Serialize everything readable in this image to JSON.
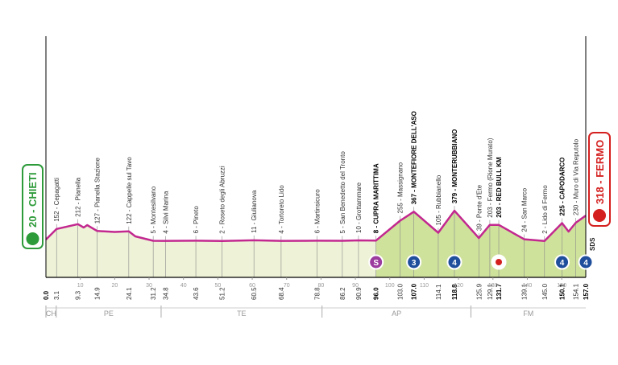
{
  "chart_data": {
    "type": "profile",
    "start": "20 - CHIETI",
    "finish": "318 - FERMO",
    "line_color": "#c2288f",
    "fill_color": "#eef3d7",
    "climb_fill_color": "#cfe29c",
    "climb_from": 96,
    "xlim": [
      0,
      157
    ],
    "ylim": [
      -450,
      1200
    ],
    "xticks": [
      10,
      20,
      30,
      40,
      50,
      60,
      70,
      80,
      90,
      100,
      110,
      120,
      130,
      140,
      150
    ],
    "profile": {
      "x": [
        0,
        3.1,
        9.3,
        11,
        12,
        14.9,
        20,
        24.1,
        26,
        31.2,
        34.8,
        43.6,
        51.2,
        60.5,
        68.4,
        78.8,
        86.2,
        90.9,
        96,
        103,
        107,
        114.1,
        118.8,
        125.9,
        129.1,
        131.7,
        139.1,
        145,
        150.1,
        152,
        154.1,
        157
      ],
      "y": [
        20,
        152,
        212,
        170,
        200,
        127,
        115,
        122,
        60,
        5,
        4,
        6,
        2,
        11,
        4,
        6,
        5,
        10,
        8,
        255,
        367,
        105,
        379,
        39,
        203,
        203,
        24,
        2,
        225,
        120,
        230,
        318
      ]
    },
    "waypoints": [
      {
        "km": {
          "value": 0,
          "label": "0.0"
        },
        "bold": true
      },
      {
        "km": 3.1,
        "name": "152 - Cepagatti"
      },
      {
        "km": 9.3,
        "name": "212 - Pianella"
      },
      {
        "km": 14.9,
        "name": "127 - Pianella Stazione"
      },
      {
        "km": 24.1,
        "name": "122 - Cappelle sul Tavo"
      },
      {
        "km": 31.2,
        "name": "5 - Montesilvano"
      },
      {
        "km": 34.8,
        "name": "4 - Silvi Marina"
      },
      {
        "km": 43.6,
        "name": "6 - Pineto"
      },
      {
        "km": 51.2,
        "name": "2 - Roseto degli Abruzzi"
      },
      {
        "km": 60.5,
        "name": "11 - Giulianova"
      },
      {
        "km": 68.4,
        "name": "4 - Tortoreto Lido"
      },
      {
        "km": 78.8,
        "name": "6 - Martinsicuro"
      },
      {
        "km": 86.2,
        "name": "5 - San Benedetto del Tronto"
      },
      {
        "km": 90.9,
        "name": "10 - Grottammare"
      },
      {
        "km": {
          "value": 96,
          "label": "96.0"
        },
        "name": "8 - CUPRA MARITTIMA",
        "bold": true
      },
      {
        "km": {
          "value": 103,
          "label": "103.0"
        },
        "name": "255 - Massignano"
      },
      {
        "km": {
          "value": 107,
          "label": "107.0"
        },
        "name": "367 - MONTEFIORE DELL'ASO",
        "bold": true
      },
      {
        "km": 114.1,
        "name": "105 - Rubbianello"
      },
      {
        "km": 118.8,
        "name": "379 - MONTERUBBIANO",
        "bold": true
      },
      {
        "km": 125.9,
        "name": "39 - Ponte d'Ete"
      },
      {
        "km": 129.1,
        "name": "203 - Fermo (Rione Murato)"
      },
      {
        "km": 131.7,
        "name": "203 - RED BULL KM",
        "bold": true
      },
      {
        "km": 139.1,
        "name": "24 - San Marco"
      },
      {
        "km": {
          "value": 145,
          "label": "145.0"
        },
        "name": "2 - Lido di Fermo"
      },
      {
        "km": 150.1,
        "name": "225 - CAPODARCO",
        "bold": true
      },
      {
        "km": 154.1,
        "name": "230 - Muro di Via Reputolo"
      },
      {
        "km": {
          "value": 157,
          "label": "157.0"
        },
        "bold": true
      }
    ],
    "markers": [
      {
        "km": 96,
        "label": "S",
        "color": "#9b3c9e"
      },
      {
        "km": 107,
        "label": "3",
        "color": "#1f4e9c"
      },
      {
        "km": 118.8,
        "label": "4",
        "color": "#1f4e9c"
      },
      {
        "km": 131.7,
        "color": "#ffffff"
      },
      {
        "km": 150.1,
        "label": "4",
        "color": "#1f4e9c"
      },
      {
        "km": 157,
        "label": "4",
        "color": "#1f4e9c"
      }
    ],
    "sds": "SDS",
    "regions": [
      {
        "name": "CH",
        "from": 0,
        "to": 3
      },
      {
        "name": "PE",
        "from": 3,
        "to": 33.5
      },
      {
        "name": "TE",
        "from": 33.5,
        "to": 80.3
      },
      {
        "name": "AP",
        "from": 80.3,
        "to": 123.6
      },
      {
        "name": "FM",
        "from": 123.6,
        "to": 157
      }
    ]
  }
}
